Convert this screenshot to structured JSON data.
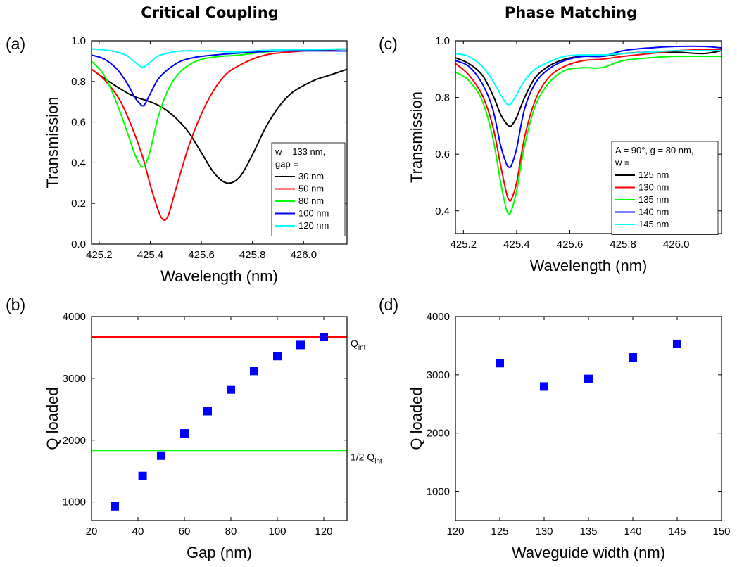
{
  "columns": [
    {
      "title": "Critical Coupling"
    },
    {
      "title": "Phase Matching"
    }
  ],
  "chart_data": [
    {
      "panel": "(a)",
      "type": "line",
      "xlabel": "Wavelength (nm)",
      "ylabel": "Transmission",
      "xlim": [
        425.17,
        426.17
      ],
      "ylim": [
        0.0,
        1.0
      ],
      "xticks": [
        425.2,
        425.4,
        425.6,
        425.8,
        426.0
      ],
      "yticks": [
        0.0,
        0.2,
        0.4,
        0.6,
        0.8,
        1.0
      ],
      "legend_header": [
        "w = 133 nm,",
        "gap ="
      ],
      "series": [
        {
          "name": "30 nm",
          "color": "#000000",
          "x": [
            425.17,
            425.25,
            425.33,
            425.4,
            425.45,
            425.5,
            425.55,
            425.6,
            425.65,
            425.7,
            425.75,
            425.8,
            425.85,
            425.9,
            425.95,
            426.0,
            426.05,
            426.1,
            426.17
          ],
          "y": [
            0.86,
            0.79,
            0.73,
            0.7,
            0.67,
            0.62,
            0.55,
            0.45,
            0.35,
            0.3,
            0.33,
            0.44,
            0.57,
            0.67,
            0.74,
            0.78,
            0.81,
            0.83,
            0.86
          ]
        },
        {
          "name": "50 nm",
          "color": "#ff0000",
          "x": [
            425.17,
            425.22,
            425.28,
            425.33,
            425.37,
            425.4,
            425.43,
            425.45,
            425.47,
            425.5,
            425.55,
            425.6,
            425.65,
            425.7,
            425.75,
            425.8,
            425.85,
            425.9,
            426.0,
            426.17
          ],
          "y": [
            0.86,
            0.81,
            0.71,
            0.57,
            0.43,
            0.29,
            0.17,
            0.12,
            0.14,
            0.27,
            0.48,
            0.64,
            0.76,
            0.84,
            0.88,
            0.91,
            0.93,
            0.94,
            0.95,
            0.96
          ]
        },
        {
          "name": "80 nm",
          "color": "#00ff00",
          "x": [
            425.17,
            425.22,
            425.27,
            425.31,
            425.34,
            425.36,
            425.37,
            425.38,
            425.4,
            425.43,
            425.47,
            425.52,
            425.58,
            425.65,
            425.75,
            425.9,
            426.17
          ],
          "y": [
            0.9,
            0.83,
            0.69,
            0.55,
            0.44,
            0.39,
            0.38,
            0.39,
            0.46,
            0.62,
            0.76,
            0.85,
            0.9,
            0.92,
            0.93,
            0.95,
            0.96
          ]
        },
        {
          "name": "100 nm",
          "color": "#0000ff",
          "x": [
            425.17,
            425.22,
            425.27,
            425.31,
            425.34,
            425.36,
            425.37,
            425.38,
            425.4,
            425.43,
            425.47,
            425.52,
            425.58,
            425.65,
            425.75,
            425.9,
            426.17
          ],
          "y": [
            0.93,
            0.91,
            0.86,
            0.79,
            0.72,
            0.69,
            0.68,
            0.69,
            0.74,
            0.81,
            0.86,
            0.9,
            0.92,
            0.93,
            0.94,
            0.95,
            0.95
          ]
        },
        {
          "name": "120 nm",
          "color": "#00ffff",
          "x": [
            425.17,
            425.22,
            425.27,
            425.31,
            425.34,
            425.36,
            425.37,
            425.38,
            425.4,
            425.43,
            425.47,
            425.52,
            425.58,
            425.65,
            425.72,
            425.8,
            425.9,
            426.17
          ],
          "y": [
            0.96,
            0.955,
            0.945,
            0.925,
            0.895,
            0.875,
            0.87,
            0.875,
            0.895,
            0.925,
            0.94,
            0.95,
            0.95,
            0.95,
            0.945,
            0.95,
            0.955,
            0.96
          ]
        }
      ]
    },
    {
      "panel": "(c)",
      "type": "line",
      "xlabel": "Wavelength (nm)",
      "ylabel": "Transmission",
      "xlim": [
        425.17,
        426.17
      ],
      "ylim": [
        0.32,
        1.0
      ],
      "xticks": [
        425.2,
        425.4,
        425.6,
        425.8,
        426.0
      ],
      "yticks": [
        0.4,
        0.6,
        0.8,
        1.0
      ],
      "legend_header": [
        "A = 90°, g = 80 nm,",
        "w ="
      ],
      "series": [
        {
          "name": "125 nm",
          "color": "#000000",
          "x": [
            425.17,
            425.22,
            425.27,
            425.31,
            425.34,
            425.36,
            425.37,
            425.38,
            425.4,
            425.43,
            425.47,
            425.52,
            425.58,
            425.65,
            425.72,
            425.8,
            425.9,
            426.0,
            426.1,
            426.17
          ],
          "y": [
            0.94,
            0.92,
            0.88,
            0.81,
            0.74,
            0.71,
            0.7,
            0.7,
            0.73,
            0.8,
            0.87,
            0.91,
            0.935,
            0.945,
            0.945,
            0.955,
            0.96,
            0.96,
            0.955,
            0.965
          ]
        },
        {
          "name": "130 nm",
          "color": "#ff0000",
          "x": [
            425.17,
            425.22,
            425.27,
            425.31,
            425.34,
            425.36,
            425.37,
            425.38,
            425.4,
            425.43,
            425.47,
            425.52,
            425.58,
            425.65,
            425.72,
            425.8,
            425.9,
            426.0,
            426.17
          ],
          "y": [
            0.92,
            0.88,
            0.81,
            0.7,
            0.56,
            0.47,
            0.44,
            0.44,
            0.5,
            0.66,
            0.79,
            0.87,
            0.91,
            0.93,
            0.935,
            0.945,
            0.955,
            0.965,
            0.97
          ]
        },
        {
          "name": "135 nm",
          "color": "#00ff00",
          "x": [
            425.17,
            425.22,
            425.27,
            425.31,
            425.34,
            425.36,
            425.37,
            425.38,
            425.4,
            425.43,
            425.47,
            425.52,
            425.58,
            425.65,
            425.72,
            425.8,
            425.9,
            426.0,
            426.17
          ],
          "y": [
            0.89,
            0.86,
            0.79,
            0.66,
            0.5,
            0.41,
            0.39,
            0.4,
            0.47,
            0.63,
            0.77,
            0.85,
            0.895,
            0.905,
            0.905,
            0.93,
            0.94,
            0.945,
            0.945
          ]
        },
        {
          "name": "140 nm",
          "color": "#0000ff",
          "x": [
            425.17,
            425.22,
            425.27,
            425.31,
            425.34,
            425.36,
            425.37,
            425.38,
            425.4,
            425.43,
            425.47,
            425.52,
            425.58,
            425.65,
            425.72,
            425.8,
            425.9,
            426.0,
            426.1,
            426.17
          ],
          "y": [
            0.93,
            0.91,
            0.85,
            0.76,
            0.63,
            0.57,
            0.555,
            0.56,
            0.62,
            0.76,
            0.85,
            0.9,
            0.93,
            0.945,
            0.945,
            0.965,
            0.975,
            0.98,
            0.98,
            0.975
          ]
        },
        {
          "name": "145 nm",
          "color": "#00ffff",
          "x": [
            425.17,
            425.22,
            425.27,
            425.31,
            425.34,
            425.36,
            425.37,
            425.38,
            425.4,
            425.43,
            425.47,
            425.52,
            425.58,
            425.65,
            425.72,
            425.8,
            425.9,
            426.0,
            426.17
          ],
          "y": [
            0.955,
            0.945,
            0.91,
            0.86,
            0.81,
            0.78,
            0.775,
            0.78,
            0.81,
            0.86,
            0.9,
            0.925,
            0.945,
            0.95,
            0.95,
            0.955,
            0.96,
            0.965,
            0.965
          ]
        }
      ]
    },
    {
      "panel": "(b)",
      "type": "scatter",
      "xlabel": "Gap (nm)",
      "ylabel": "Q loaded",
      "xlim": [
        20,
        130
      ],
      "ylim": [
        700,
        4000
      ],
      "xticks": [
        20,
        40,
        60,
        80,
        100,
        120
      ],
      "yticks": [
        1000,
        2000,
        3000,
        4000
      ],
      "series": [
        {
          "color": "#0000ff",
          "x": [
            30,
            42,
            50,
            60,
            70,
            80,
            90,
            100,
            110,
            120
          ],
          "y": [
            930,
            1420,
            1750,
            2110,
            2470,
            2820,
            3120,
            3360,
            3540,
            3670
          ]
        }
      ],
      "hlines": [
        {
          "y": 3670,
          "color": "#ff0000",
          "label": "Q",
          "label_sub": "int"
        },
        {
          "y": 1835,
          "color": "#00ff00",
          "label": "1/2 Q",
          "label_sub": "int"
        }
      ]
    },
    {
      "panel": "(d)",
      "type": "scatter",
      "xlabel": "Waveguide width (nm)",
      "ylabel": "Q loaded",
      "xlim": [
        120,
        150
      ],
      "ylim": [
        500,
        4000
      ],
      "xticks": [
        120,
        125,
        130,
        135,
        140,
        145,
        150
      ],
      "yticks": [
        1000,
        2000,
        3000,
        4000
      ],
      "series": [
        {
          "color": "#0000ff",
          "x": [
            125,
            130,
            135,
            140,
            145
          ],
          "y": [
            3200,
            2800,
            2930,
            3300,
            3530
          ]
        }
      ]
    }
  ]
}
